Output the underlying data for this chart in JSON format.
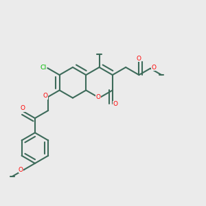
{
  "background_color": "#ebebeb",
  "bond_color": "#3d6b5a",
  "bond_width": 1.5,
  "atom_colors": {
    "O": "#ff0000",
    "Cl": "#00bb00",
    "C": "#3d6b5a"
  },
  "figsize": [
    3.0,
    3.0
  ],
  "dpi": 100
}
